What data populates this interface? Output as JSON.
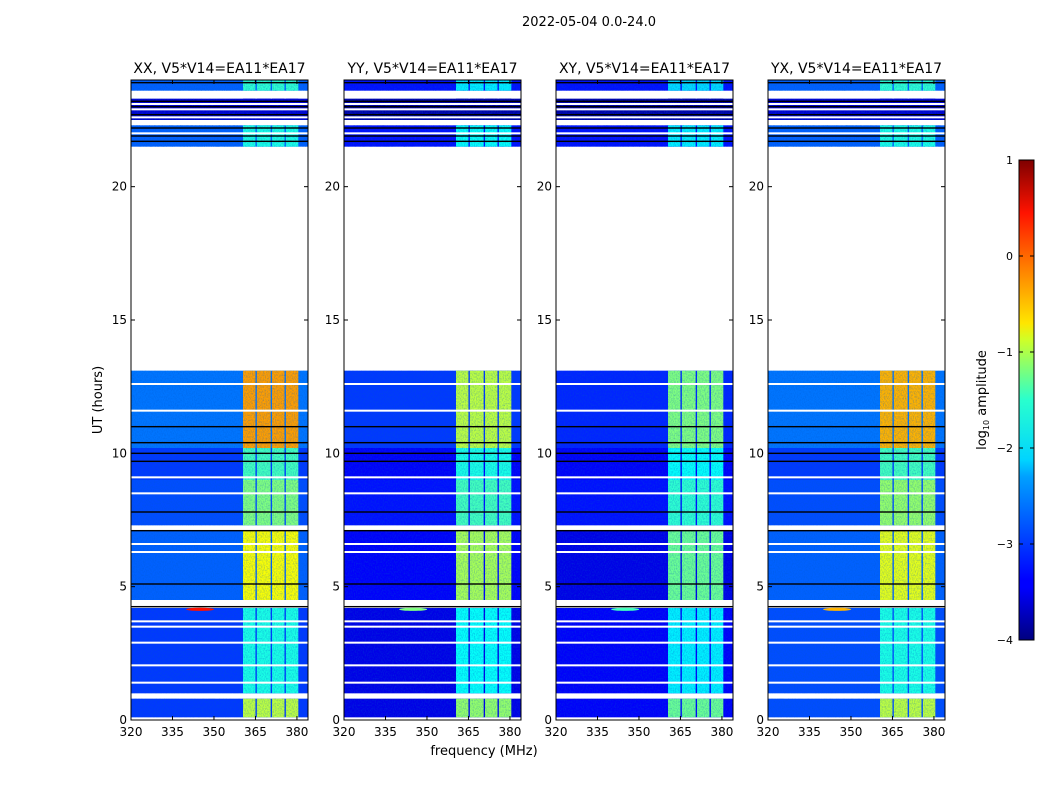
{
  "chart_data": {
    "type": "heatmap",
    "title": "2022-05-04 0.0-24.0",
    "xlabel": "frequency (MHz)",
    "ylabel": "UT (hours)",
    "xlim": [
      320,
      384
    ],
    "ylim": [
      0,
      24
    ],
    "xticks": [
      320,
      335,
      350,
      365,
      380
    ],
    "yticks": [
      0,
      5,
      10,
      15,
      20
    ],
    "colormap": "jet",
    "colorbar": {
      "label_main": "log",
      "label_sub": "10",
      "label_tail": " amplitude",
      "range": [
        -4,
        1
      ],
      "ticks": [
        1,
        0,
        -1,
        -2,
        -3,
        -4
      ]
    },
    "bands_mhz": [
      [
        360.5,
        365
      ],
      [
        365.5,
        370.5
      ],
      [
        371,
        375.5
      ],
      [
        376,
        380.5
      ]
    ],
    "segments_hours": [
      [
        0.1,
        0.8
      ],
      [
        1.0,
        4.2
      ],
      [
        4.5,
        7.1
      ],
      [
        7.3,
        9.0
      ],
      [
        9.0,
        10.2
      ],
      [
        10.2,
        13.1
      ],
      [
        21.5,
        22.3
      ],
      [
        22.5,
        23.3
      ],
      [
        23.6,
        24
      ]
    ],
    "white_flag_hours": [
      1.4,
      2.05,
      2.9,
      3.5,
      3.7,
      6.3,
      6.6,
      8.5,
      9.1,
      11.6,
      12.6,
      22.0,
      22.6,
      22.9,
      23.1
    ],
    "black_flag_hours": [
      4.25,
      5.1,
      7.1,
      7.8,
      9.7,
      10.0,
      10.4,
      11.0,
      21.7,
      21.9,
      22.2,
      22.7,
      23.0,
      23.2,
      23.9
    ],
    "panels": [
      {
        "title": "XX, V5*V14=EA11*EA17",
        "bg": [
          -3.1,
          -3.1,
          -2.9,
          -3.0,
          -3.1,
          -2.8,
          -2.9,
          -3.6,
          -2.9
        ],
        "band": [
          -1.2,
          -2.0,
          -0.9,
          -1.5,
          -1.8,
          -0.4,
          -2.0,
          -3.6,
          -1.9
        ],
        "rfi": {
          "freq": 345,
          "hour": 4.15,
          "level": 0.3
        }
      },
      {
        "title": "YY, V5*V14=EA11*EA17",
        "bg": [
          -3.5,
          -3.5,
          -3.4,
          -3.3,
          -3.4,
          -3.1,
          -3.3,
          -3.8,
          -3.3
        ],
        "band": [
          -1.4,
          -2.1,
          -1.3,
          -1.8,
          -2.0,
          -1.2,
          -2.1,
          -3.8,
          -2.2
        ],
        "rfi": {
          "freq": 345,
          "hour": 4.15,
          "level": -1.5
        }
      },
      {
        "title": "XY, V5*V14=EA11*EA17",
        "bg": [
          -3.4,
          -3.4,
          -3.5,
          -3.3,
          -3.4,
          -3.2,
          -3.3,
          -3.8,
          -3.3
        ],
        "band": [
          -1.6,
          -2.2,
          -1.6,
          -1.9,
          -2.1,
          -1.5,
          -2.2,
          -3.8,
          -2.3
        ],
        "rfi": {
          "freq": 345,
          "hour": 4.15,
          "level": -1.8
        }
      },
      {
        "title": "YX, V5*V14=EA11*EA17",
        "bg": [
          -3.0,
          -3.0,
          -2.9,
          -3.0,
          -3.1,
          -2.8,
          -2.9,
          -3.6,
          -2.9
        ],
        "band": [
          -1.2,
          -2.0,
          -1.0,
          -1.4,
          -1.8,
          -0.5,
          -2.0,
          -3.6,
          -1.9
        ],
        "rfi": {
          "freq": 345,
          "hour": 4.15,
          "level": -0.5
        }
      }
    ]
  }
}
